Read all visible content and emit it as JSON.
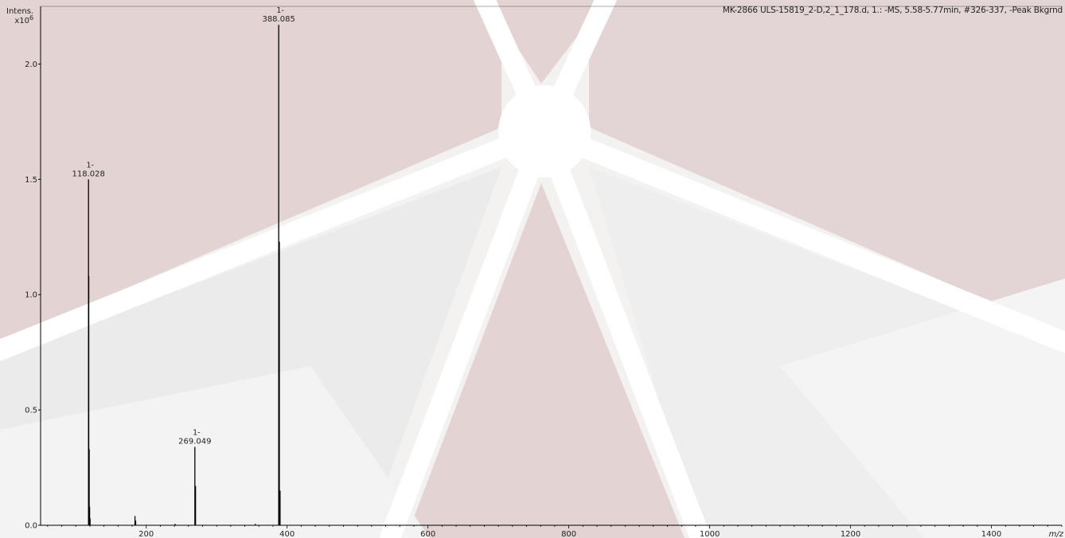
{
  "header": {
    "spectrum_info": "MK-2866 ULS-15819_2-D,2_1_178.d, 1.: -MS, 5.58-5.77min, #326-337, -Peak Bkgrnd"
  },
  "chart_data": {
    "type": "bar",
    "title": "",
    "xlabel": "m/z",
    "ylabel": "Intens.",
    "yunit_prefix": "x10",
    "yunit_exp": "6",
    "xlim": [
      50,
      1500
    ],
    "ylim": [
      0,
      2.25
    ],
    "xticks": [
      200,
      400,
      600,
      800,
      1000,
      1200,
      1400
    ],
    "xtick_labels": [
      "200",
      "400",
      "600",
      "800",
      "1000",
      "1200",
      "1400"
    ],
    "yticks": [
      0.0,
      0.5,
      1.0,
      1.5,
      2.0
    ],
    "ytick_labels": [
      "0.0",
      "0.5",
      "1.0",
      "1.5",
      "2.0"
    ],
    "peaks": [
      {
        "mz": 118.028,
        "intensity": 1.5,
        "charge": "1-",
        "label": "118.028"
      },
      {
        "mz": 118.4,
        "intensity": 1.08
      },
      {
        "mz": 119.0,
        "intensity": 0.33
      },
      {
        "mz": 119.6,
        "intensity": 0.08
      },
      {
        "mz": 120.3,
        "intensity": 0.03
      },
      {
        "mz": 184.0,
        "intensity": 0.04
      },
      {
        "mz": 185.0,
        "intensity": 0.02
      },
      {
        "mz": 241.0,
        "intensity": 0.006
      },
      {
        "mz": 269.049,
        "intensity": 0.34,
        "charge": "1-",
        "label": "269.049"
      },
      {
        "mz": 270.0,
        "intensity": 0.17
      },
      {
        "mz": 355.0,
        "intensity": 0.006
      },
      {
        "mz": 388.085,
        "intensity": 2.17,
        "charge": "1-",
        "label": "388.085"
      },
      {
        "mz": 389.0,
        "intensity": 1.23
      },
      {
        "mz": 390.0,
        "intensity": 0.15
      }
    ]
  }
}
